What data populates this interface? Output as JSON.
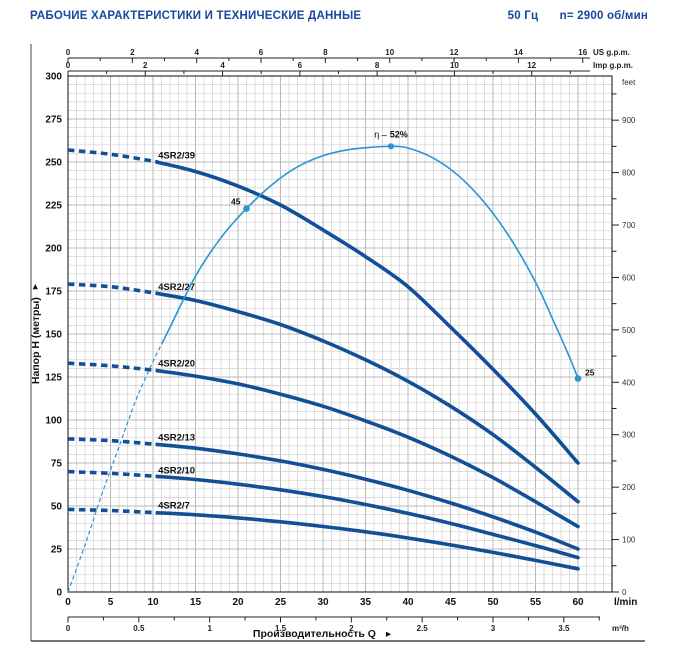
{
  "header": {
    "title": "РАБОЧИЕ ХАРАКТЕРИСТИКИ И ТЕХНИЧЕСКИЕ ДАННЫЕ",
    "frequency": "50 Гц",
    "speed": "n= 2900 об/мин"
  },
  "icons": {
    "axis_arrow": "▸"
  },
  "colors": {
    "title_blue": "#17479e",
    "curve_blue": "#114f97",
    "efficiency_blue": "#2795d6",
    "grid": "#d0d0d0",
    "grid_major": "#b8b8b8",
    "axis_black": "#222222",
    "text_gray": "#333333"
  },
  "chart_data": {
    "type": "line",
    "title": "Pump performance curves 4SR2, 50 Hz, 2900 rpm",
    "x_axis": {
      "title": "Производительность Q",
      "primary_unit": "l/min",
      "primary_ticks": [
        0,
        5,
        10,
        15,
        20,
        25,
        30,
        35,
        40,
        45,
        50,
        55,
        60
      ],
      "range_lmin": [
        0,
        60
      ],
      "secondary_unit": "m³/h",
      "secondary_ticks": [
        0,
        0.5,
        1,
        1.5,
        2,
        2.5,
        3,
        3.5
      ],
      "top_scales": [
        {
          "unit": "US g.p.m.",
          "ticks": [
            0,
            2,
            4,
            6,
            8,
            10,
            12,
            14,
            16
          ],
          "max_tick": 16,
          "lmin_per_unit": 3.785
        },
        {
          "unit": "Imp g.p.m.",
          "ticks": [
            0,
            2,
            4,
            6,
            8,
            10,
            12
          ],
          "max_tick": 13,
          "lmin_per_unit": 4.546
        }
      ]
    },
    "y_axis": {
      "title": "Напор H (метры)",
      "unit": "m",
      "range_m": [
        0,
        300
      ],
      "ticks_m": [
        0,
        25,
        50,
        75,
        100,
        125,
        150,
        175,
        200,
        225,
        250,
        275,
        300
      ],
      "secondary_unit": "feet",
      "ticks_feet": [
        0,
        100,
        200,
        300,
        400,
        500,
        600,
        700,
        800,
        900
      ]
    },
    "grid": {
      "minor_x_lmin": 1,
      "minor_y_m": 5,
      "major_x_lmin": 5,
      "major_y_m": 25
    },
    "dashed_below_lmin": 10.5,
    "series": [
      {
        "name": "4SR2/39",
        "label_q": 10.6,
        "label_h": 252,
        "points": [
          [
            0,
            257
          ],
          [
            5,
            254.5
          ],
          [
            10,
            250.5
          ],
          [
            15,
            244.5
          ],
          [
            20,
            236
          ],
          [
            25,
            225
          ],
          [
            30,
            210.5
          ],
          [
            35,
            195
          ],
          [
            40,
            177.5
          ],
          [
            45,
            154
          ],
          [
            50,
            129.5
          ],
          [
            55,
            103.5
          ],
          [
            60,
            75
          ]
        ]
      },
      {
        "name": "4SR2/27",
        "label_q": 10.6,
        "label_h": 175.5,
        "points": [
          [
            0,
            179
          ],
          [
            5,
            177.5
          ],
          [
            10,
            174
          ],
          [
            15,
            169.5
          ],
          [
            20,
            163
          ],
          [
            25,
            155.5
          ],
          [
            30,
            146
          ],
          [
            35,
            135
          ],
          [
            40,
            122.5
          ],
          [
            45,
            108
          ],
          [
            50,
            91.5
          ],
          [
            55,
            72.5
          ],
          [
            60,
            52.5
          ]
        ]
      },
      {
        "name": "4SR2/20",
        "label_q": 10.6,
        "label_h": 131,
        "points": [
          [
            0,
            133
          ],
          [
            5,
            131.5
          ],
          [
            10,
            129
          ],
          [
            15,
            125.5
          ],
          [
            20,
            121
          ],
          [
            25,
            115
          ],
          [
            30,
            108
          ],
          [
            35,
            99.5
          ],
          [
            40,
            90
          ],
          [
            45,
            79
          ],
          [
            50,
            66.5
          ],
          [
            55,
            52.5
          ],
          [
            60,
            38
          ]
        ]
      },
      {
        "name": "4SR2/13",
        "label_q": 10.6,
        "label_h": 88,
        "points": [
          [
            0,
            89
          ],
          [
            5,
            88
          ],
          [
            10,
            86
          ],
          [
            15,
            83.6
          ],
          [
            20,
            80.3
          ],
          [
            25,
            76.2
          ],
          [
            30,
            71.3
          ],
          [
            35,
            65.6
          ],
          [
            40,
            59.1
          ],
          [
            45,
            51.8
          ],
          [
            50,
            43.7
          ],
          [
            55,
            34.8
          ],
          [
            60,
            25
          ]
        ]
      },
      {
        "name": "4SR2/10",
        "label_q": 10.6,
        "label_h": 69,
        "points": [
          [
            0,
            70
          ],
          [
            5,
            69
          ],
          [
            10,
            67.4
          ],
          [
            15,
            65.4
          ],
          [
            20,
            62.7
          ],
          [
            25,
            59.4
          ],
          [
            30,
            55.5
          ],
          [
            35,
            50.9
          ],
          [
            40,
            45.7
          ],
          [
            45,
            39.9
          ],
          [
            50,
            33.5
          ],
          [
            55,
            27
          ],
          [
            60,
            20
          ]
        ]
      },
      {
        "name": "4SR2/7",
        "label_q": 10.6,
        "label_h": 48.5,
        "points": [
          [
            0,
            48
          ],
          [
            5,
            47.4
          ],
          [
            10,
            46.2
          ],
          [
            15,
            44.9
          ],
          [
            20,
            43.1
          ],
          [
            25,
            40.8
          ],
          [
            30,
            38.1
          ],
          [
            35,
            35
          ],
          [
            40,
            31.4
          ],
          [
            45,
            27.4
          ],
          [
            50,
            23
          ],
          [
            55,
            18.4
          ],
          [
            60,
            13.5
          ]
        ]
      }
    ],
    "efficiency": {
      "name": "η",
      "unit": "%",
      "dashed_below_lmin": 11,
      "points": [
        [
          0,
          0
        ],
        [
          2,
          5.5
        ],
        [
          4,
          11.5
        ],
        [
          6,
          17
        ],
        [
          8,
          22.5
        ],
        [
          10,
          27
        ],
        [
          12,
          31
        ],
        [
          15,
          37
        ],
        [
          18,
          41.5
        ],
        [
          21,
          44.9
        ],
        [
          24,
          47.7
        ],
        [
          27,
          49.8
        ],
        [
          30,
          51.1
        ],
        [
          33,
          51.8
        ],
        [
          36,
          52.1
        ],
        [
          38,
          52.2
        ],
        [
          40,
          52
        ],
        [
          43,
          50.8
        ],
        [
          46,
          48.7
        ],
        [
          49,
          45.6
        ],
        [
          52,
          41.5
        ],
        [
          55,
          36.3
        ],
        [
          57,
          32
        ],
        [
          59,
          27.5
        ],
        [
          60,
          25
        ]
      ],
      "peak": {
        "q": 38,
        "label_prefix": "η –",
        "label_value": "52%"
      },
      "markers": [
        {
          "q": 21,
          "label": "45",
          "side": "left"
        },
        {
          "q": 60,
          "label": "25",
          "side": "right"
        }
      ]
    }
  }
}
